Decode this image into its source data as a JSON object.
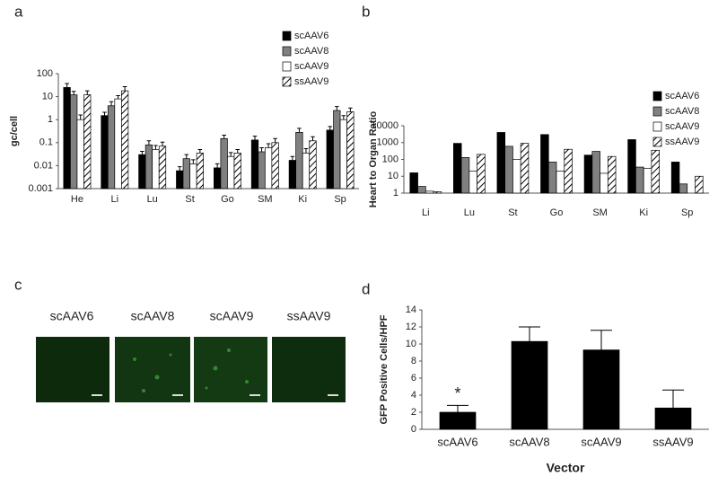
{
  "panel_labels": [
    "a",
    "b",
    "c",
    "d"
  ],
  "chart_data": [
    {
      "type": "bar",
      "y_label": "gc/cell",
      "log_scale": true,
      "categories": [
        "He",
        "Li",
        "Lu",
        "St",
        "Go",
        "SM",
        "Ki",
        "Sp"
      ],
      "ylim": [
        0.001,
        100
      ],
      "yticks": [
        0.001,
        0.01,
        0.1,
        1,
        10,
        100
      ],
      "legend": "upper right",
      "series": [
        {
          "name": "scAAV6",
          "color": "#000000",
          "values": [
            25,
            1.5,
            0.03,
            0.006,
            0.008,
            0.13,
            0.017,
            0.35
          ],
          "errors": [
            12,
            0.6,
            0.012,
            0.003,
            0.004,
            0.06,
            0.008,
            0.15
          ]
        },
        {
          "name": "scAAV8",
          "color": "#808080",
          "values": [
            12,
            4,
            0.08,
            0.02,
            0.15,
            0.04,
            0.28,
            2.5
          ],
          "errors": [
            5,
            2,
            0.04,
            0.01,
            0.06,
            0.02,
            0.14,
            1.2
          ]
        },
        {
          "name": "scAAV9",
          "color": "#ffffff",
          "values": [
            1,
            8,
            0.05,
            0.012,
            0.025,
            0.06,
            0.035,
            1
          ],
          "errors": [
            0.6,
            3,
            0.025,
            0.006,
            0.012,
            0.03,
            0.02,
            0.5
          ]
        },
        {
          "name": "ssAAV9",
          "color": "#ffffff",
          "hatch": true,
          "values": [
            12,
            18,
            0.07,
            0.035,
            0.035,
            0.1,
            0.12,
            2.2
          ],
          "errors": [
            6,
            9,
            0.035,
            0.015,
            0.015,
            0.05,
            0.06,
            1
          ]
        }
      ]
    },
    {
      "type": "bar",
      "y_label": "Heart to Organ Ratio",
      "log_scale": true,
      "categories": [
        "Li",
        "Lu",
        "St",
        "Go",
        "SM",
        "Ki",
        "Sp"
      ],
      "ylim": [
        1,
        10000
      ],
      "yticks": [
        1,
        10,
        100,
        1000,
        10000
      ],
      "legend": "upper right",
      "series": [
        {
          "name": "scAAV6",
          "color": "#000000",
          "values": [
            16,
            900,
            4000,
            3000,
            180,
            1500,
            70
          ]
        },
        {
          "name": "scAAV8",
          "color": "#808080",
          "values": [
            2.5,
            130,
            600,
            70,
            300,
            35,
            3.5
          ]
        },
        {
          "name": "scAAV9",
          "color": "#ffffff",
          "values": [
            1.3,
            20,
            100,
            20,
            15,
            30,
            1
          ]
        },
        {
          "name": "ssAAV9",
          "color": "#ffffff",
          "hatch": true,
          "values": [
            1.2,
            200,
            900,
            400,
            150,
            350,
            10
          ]
        }
      ]
    },
    {
      "type": "bar",
      "y_label": "GFP Positive Cells/HPF",
      "x_label": "Vector",
      "annotation": "*",
      "categories": [
        "scAAV6",
        "scAAV8",
        "scAAV9",
        "ssAAV9"
      ],
      "values": [
        2,
        10.3,
        9.3,
        2.5
      ],
      "errors": [
        0.8,
        1.7,
        2.3,
        2.1
      ],
      "color": "#000000",
      "ylim": [
        0,
        14
      ],
      "yticks": [
        0,
        2,
        4,
        6,
        8,
        10,
        12,
        14
      ]
    }
  ],
  "images": {
    "labels": [
      "scAAV6",
      "scAAV8",
      "scAAV9",
      "ssAAV9"
    ]
  }
}
